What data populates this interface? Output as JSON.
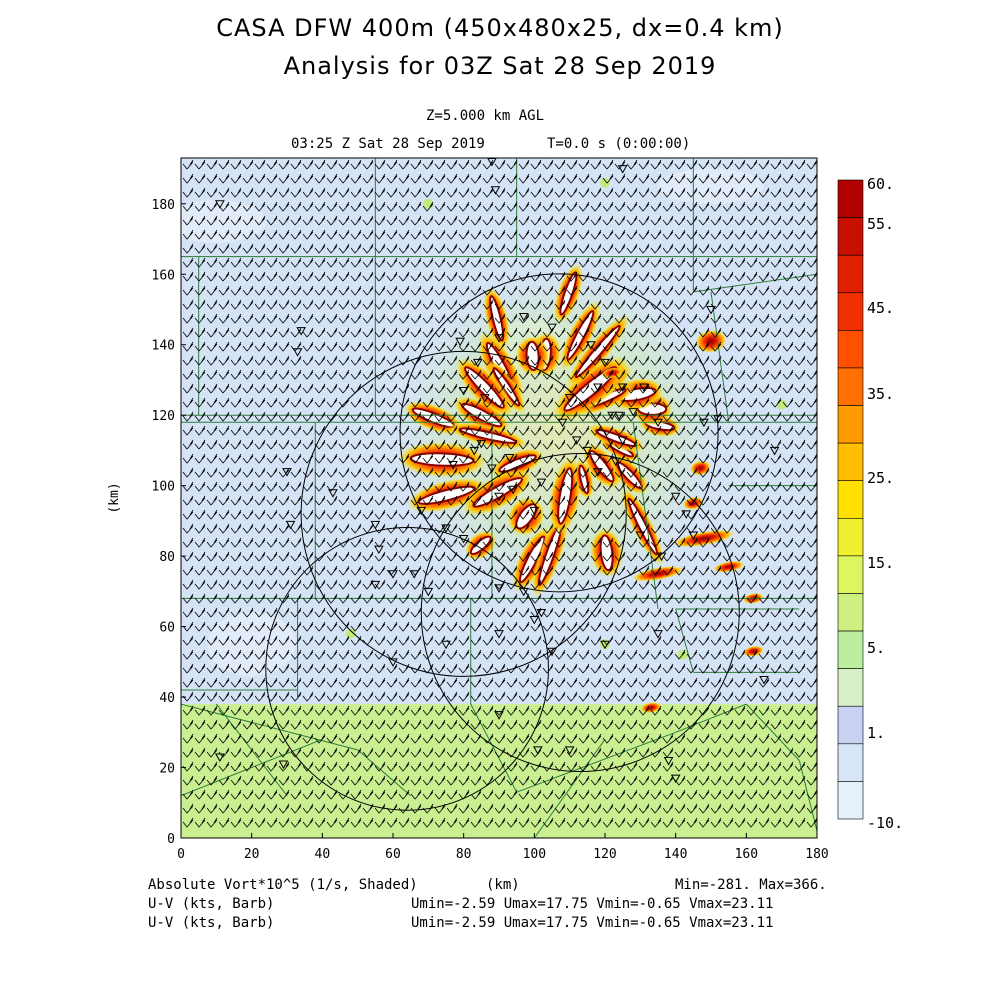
{
  "header": {
    "title_line1": "CASA DFW 400m (450x480x25, dx=0.4 km)",
    "title_line2": "Analysis for 03Z Sat 28 Sep 2019",
    "level": "Z=5.000 km AGL",
    "time_label": "03:25 Z Sat 28 Sep 2019",
    "t_label": "T=0.0 s (0:00:00)"
  },
  "footer": {
    "field_label": "Absolute Vort*10^5 (1/s, Shaded)",
    "xunit": "(km)",
    "minmax": "Min=-281. Max=366.",
    "wind1_label": "U-V (kts, Barb)",
    "wind1_stats": "Umin=-2.59 Umax=17.75 Vmin=-0.65 Vmax=23.11",
    "wind2_label": "U-V (kts, Barb)",
    "wind2_stats": "Umin=-2.59 Umax=17.75 Vmin=-0.65 Vmax=23.11"
  },
  "colors": {
    "county_lines": "#2e7d3a",
    "range_rings": "#000000",
    "barbs": "#000000"
  },
  "chart_data": {
    "type": "heatmap",
    "xlabel": "(km)",
    "ylabel": "(km)",
    "xlim": [
      0,
      180
    ],
    "ylim": [
      0,
      193
    ],
    "xticks": [
      0,
      20,
      40,
      60,
      80,
      100,
      120,
      140,
      160,
      180
    ],
    "yticks": [
      0,
      20,
      40,
      60,
      80,
      100,
      120,
      140,
      160,
      180
    ],
    "colorbar": {
      "labels": [
        "60.",
        "55.",
        "45.",
        "35.",
        "25.",
        "15.",
        "5.",
        "1.",
        "-10."
      ],
      "colors": [
        "#b00000",
        "#c81000",
        "#e02000",
        "#f03000",
        "#ff5000",
        "#ff7000",
        "#ff9a00",
        "#ffbf00",
        "#ffe000",
        "#f0f030",
        "#dff560",
        "#cdf080",
        "#bceea0",
        "#d8f0c8",
        "#c8d2f2",
        "#d6e6f6",
        "#e4f2fb"
      ]
    },
    "background_regions": [
      {
        "y_from": 38,
        "y_to": 193,
        "level": "1."
      },
      {
        "y_from": 0,
        "y_to": 38,
        "level": "5."
      }
    ],
    "range_rings_km": [
      {
        "cx": 107,
        "cy": 115,
        "r": 45
      },
      {
        "cx": 80,
        "cy": 92,
        "r": 46
      },
      {
        "cx": 113,
        "cy": 64,
        "r": 45
      },
      {
        "cx": 64,
        "cy": 48,
        "r": 40
      }
    ],
    "vortex_center_km": [
      107,
      115
    ],
    "vortex_radius_km": 43,
    "vorticity_max": 366,
    "vorticity_min": -281,
    "wind_extremes": {
      "umin": -2.59,
      "umax": 17.75,
      "vmin": -0.65,
      "vmax": 23.11
    }
  }
}
